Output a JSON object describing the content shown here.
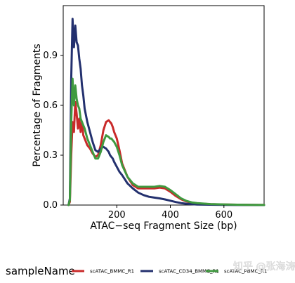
{
  "chart_data": {
    "type": "line",
    "title": "",
    "xlabel": "ATAC−seq Fragment Size (bp)",
    "ylabel": "Percentage of Fragments",
    "xlim": [
      0,
      750
    ],
    "ylim": [
      0,
      1.2
    ],
    "x_ticks": [
      200,
      400,
      600
    ],
    "y_ticks": [
      0.0,
      0.3,
      0.6,
      0.9
    ],
    "x_tick_labels": [
      "200",
      "400",
      "600"
    ],
    "y_tick_labels": [
      "0.0",
      "0.3",
      "0.6",
      "0.9"
    ],
    "grid": false,
    "legend_title": "sampleName",
    "legend_position": "bottom",
    "series": [
      {
        "name": "scATAC_BMMC_R1",
        "color": "#c92a2a",
        "x": [
          20,
          25,
          30,
          35,
          40,
          45,
          50,
          55,
          60,
          65,
          70,
          75,
          80,
          90,
          100,
          110,
          120,
          130,
          140,
          150,
          160,
          170,
          175,
          180,
          185,
          190,
          200,
          210,
          220,
          240,
          260,
          280,
          300,
          320,
          340,
          360,
          380,
          400,
          420,
          440,
          460,
          480,
          500,
          550,
          600,
          650,
          700,
          750
        ],
        "y": [
          0,
          0.02,
          0.3,
          0.5,
          0.44,
          0.62,
          0.55,
          0.46,
          0.52,
          0.44,
          0.5,
          0.42,
          0.4,
          0.36,
          0.34,
          0.31,
          0.29,
          0.3,
          0.36,
          0.45,
          0.5,
          0.51,
          0.5,
          0.49,
          0.47,
          0.44,
          0.4,
          0.33,
          0.25,
          0.17,
          0.12,
          0.1,
          0.1,
          0.1,
          0.1,
          0.105,
          0.1,
          0.08,
          0.055,
          0.035,
          0.022,
          0.014,
          0.01,
          0.005,
          0.003,
          0.002,
          0.001,
          0.0005
        ]
      },
      {
        "name": "scATAC_CD34_BMMC_R1",
        "color": "#23306e",
        "x": [
          20,
          25,
          30,
          35,
          40,
          45,
          50,
          55,
          60,
          65,
          70,
          75,
          80,
          90,
          100,
          110,
          120,
          130,
          140,
          150,
          160,
          170,
          175,
          180,
          185,
          190,
          200,
          210,
          220,
          240,
          260,
          280,
          300,
          320,
          340,
          360,
          380,
          400,
          420,
          440,
          460,
          480,
          500,
          550,
          600,
          650,
          700,
          750
        ],
        "y": [
          0,
          0.04,
          0.76,
          1.12,
          0.95,
          1.08,
          0.98,
          0.96,
          0.88,
          0.82,
          0.72,
          0.66,
          0.58,
          0.5,
          0.44,
          0.38,
          0.33,
          0.32,
          0.34,
          0.35,
          0.34,
          0.32,
          0.3,
          0.29,
          0.28,
          0.26,
          0.23,
          0.2,
          0.18,
          0.13,
          0.1,
          0.075,
          0.06,
          0.05,
          0.045,
          0.04,
          0.034,
          0.026,
          0.018,
          0.012,
          0.008,
          0.005,
          0.003,
          0.002,
          0.001,
          0.0005,
          0.0003,
          0.0002
        ]
      },
      {
        "name": "scATAC_PBMC_R1",
        "color": "#3f9a3f",
        "x": [
          20,
          25,
          30,
          35,
          40,
          45,
          50,
          55,
          60,
          65,
          70,
          75,
          80,
          90,
          100,
          110,
          120,
          130,
          140,
          150,
          160,
          170,
          175,
          180,
          185,
          190,
          200,
          210,
          220,
          240,
          260,
          280,
          300,
          320,
          340,
          360,
          380,
          400,
          420,
          440,
          460,
          480,
          500,
          550,
          600,
          650,
          700,
          750
        ],
        "y": [
          0,
          0.03,
          0.5,
          0.76,
          0.6,
          0.72,
          0.64,
          0.6,
          0.58,
          0.52,
          0.5,
          0.48,
          0.46,
          0.4,
          0.36,
          0.32,
          0.28,
          0.28,
          0.32,
          0.38,
          0.42,
          0.41,
          0.4,
          0.4,
          0.39,
          0.38,
          0.35,
          0.3,
          0.24,
          0.17,
          0.13,
          0.11,
          0.11,
          0.11,
          0.11,
          0.115,
          0.11,
          0.09,
          0.065,
          0.04,
          0.025,
          0.016,
          0.012,
          0.006,
          0.004,
          0.002,
          0.001,
          0.0005
        ]
      }
    ]
  },
  "watermark": "知乎 @张海涛"
}
